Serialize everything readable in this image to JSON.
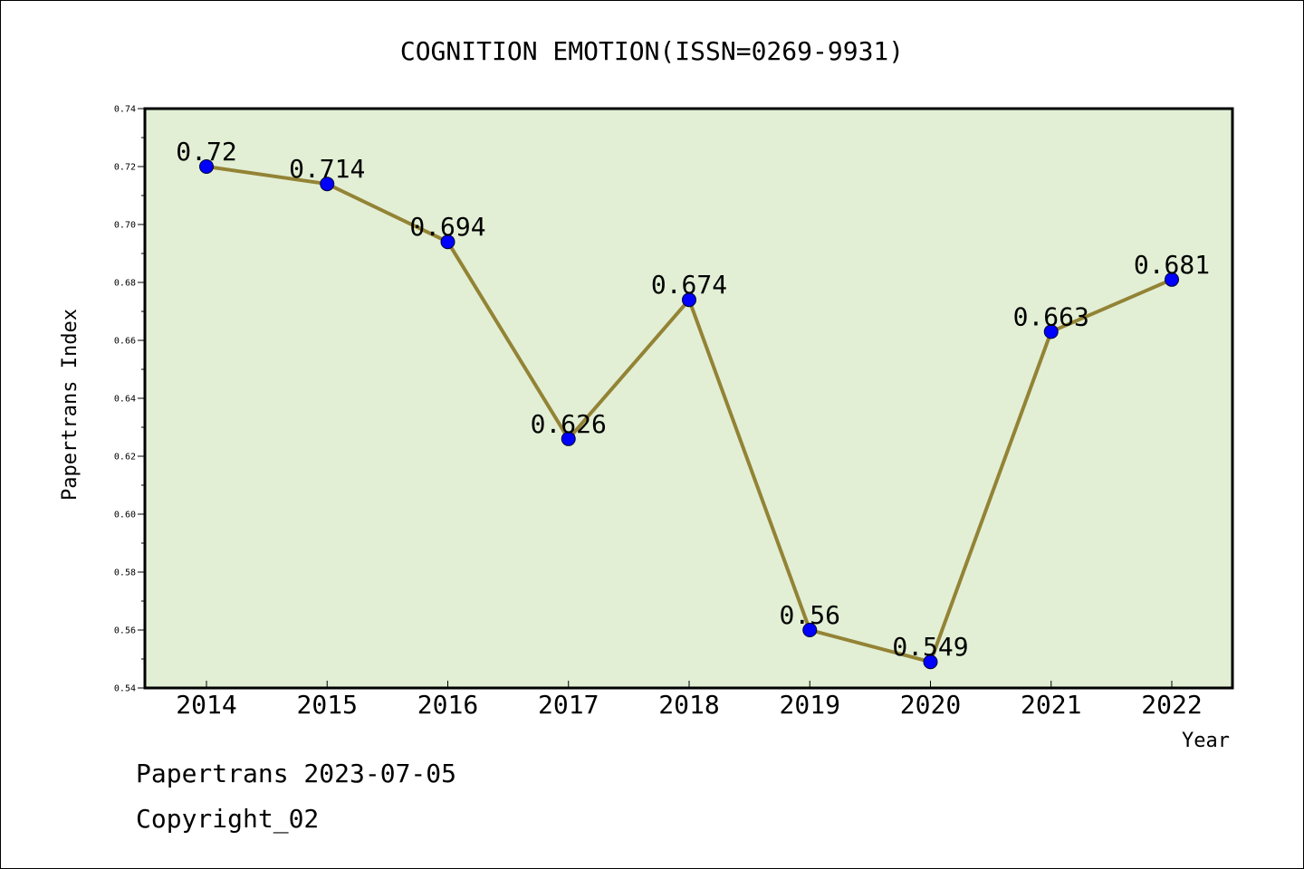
{
  "chart_data": {
    "type": "line",
    "title": "COGNITION EMOTION(ISSN=0269-9931)",
    "xlabel": "Year",
    "ylabel": "Papertrans Index",
    "categories": [
      "2014",
      "2015",
      "2016",
      "2017",
      "2018",
      "2019",
      "2020",
      "2021",
      "2022"
    ],
    "values": [
      0.72,
      0.714,
      0.694,
      0.626,
      0.674,
      0.56,
      0.549,
      0.663,
      0.681
    ],
    "data_labels": [
      "0.72",
      "0.714",
      "0.694",
      "0.626",
      "0.674",
      "0.56",
      "0.549",
      "0.663",
      "0.681"
    ],
    "ylim": [
      0.54,
      0.74
    ],
    "yticks": [
      "0.54",
      "0.56",
      "0.58",
      "0.60",
      "0.62",
      "0.64",
      "0.66",
      "0.68",
      "0.70",
      "0.72",
      "0.74"
    ],
    "grid": false,
    "colors": {
      "plot_background": "#e2efd5",
      "line": "#938335",
      "marker": "#0000ff"
    }
  },
  "footer": {
    "line1": "Papertrans 2023-07-05",
    "line2": "Copyright_02"
  }
}
